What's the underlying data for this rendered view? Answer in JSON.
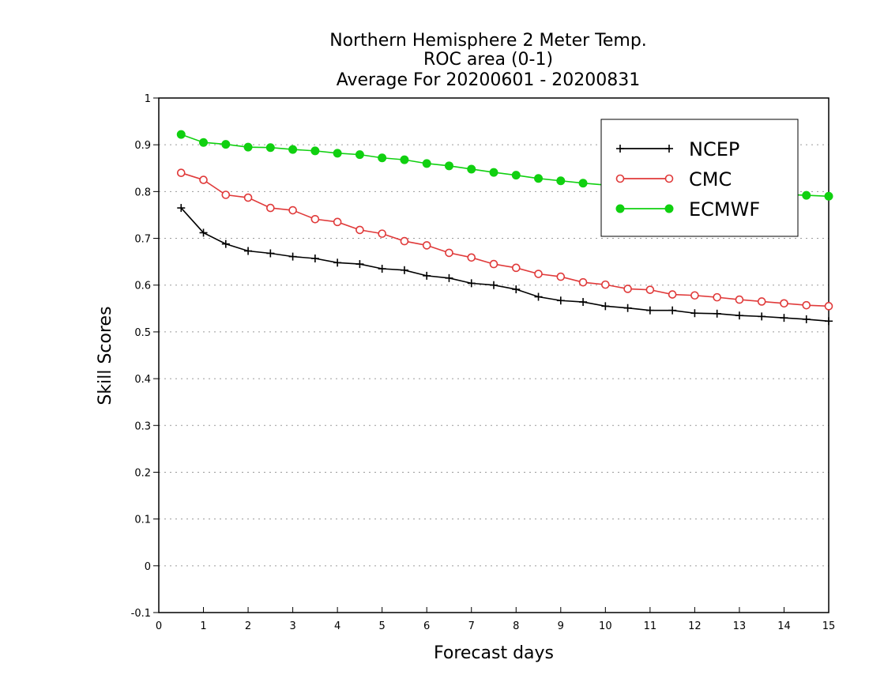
{
  "chart_data": {
    "type": "line",
    "title_lines": [
      "Northern Hemisphere 2 Meter Temp.",
      "ROC area (0-1)",
      "Average For 20200601 - 20200831"
    ],
    "xlabel": "Forecast days",
    "ylabel": "Skill Scores",
    "xlim": [
      0,
      15
    ],
    "ylim": [
      -0.1,
      1
    ],
    "xticks": [
      0,
      1,
      2,
      3,
      4,
      5,
      6,
      7,
      8,
      9,
      10,
      11,
      12,
      13,
      14,
      15
    ],
    "yticks": [
      -0.1,
      0,
      0.1,
      0.2,
      0.3,
      0.4,
      0.5,
      0.6,
      0.7,
      0.8,
      0.9,
      1
    ],
    "xtick_labels": [
      "0",
      "1",
      "2",
      "3",
      "4",
      "5",
      "6",
      "7",
      "8",
      "9",
      "10",
      "11",
      "12",
      "13",
      "14",
      "15"
    ],
    "ytick_labels": [
      "-0.1",
      "0",
      "0.1",
      "0.2",
      "0.3",
      "0.4",
      "0.5",
      "0.6",
      "0.7",
      "0.8",
      "0.9",
      "1"
    ],
    "grid": "horizontal dotted",
    "legend_position": "top-right",
    "x": [
      0.5,
      1,
      1.5,
      2,
      2.5,
      3,
      3.5,
      4,
      4.5,
      5,
      5.5,
      6,
      6.5,
      7,
      7.5,
      8,
      8.5,
      9,
      9.5,
      10,
      10.5,
      11,
      11.5,
      12,
      12.5,
      13,
      13.5,
      14,
      14.5,
      15
    ],
    "series": [
      {
        "name": "NCEP",
        "color": "#000000",
        "marker": "plus",
        "values": [
          0.765,
          0.712,
          0.688,
          0.673,
          0.668,
          0.661,
          0.657,
          0.648,
          0.645,
          0.635,
          0.632,
          0.62,
          0.615,
          0.604,
          0.6,
          0.591,
          0.575,
          0.567,
          0.564,
          0.555,
          0.551,
          0.546,
          0.546,
          0.54,
          0.539,
          0.535,
          0.533,
          0.53,
          0.527,
          0.523
        ]
      },
      {
        "name": "CMC",
        "color": "#e03a3a",
        "marker": "open-circle",
        "values": [
          0.84,
          0.825,
          0.793,
          0.787,
          0.765,
          0.76,
          0.741,
          0.735,
          0.718,
          0.71,
          0.694,
          0.685,
          0.669,
          0.659,
          0.645,
          0.637,
          0.624,
          0.618,
          0.606,
          0.601,
          0.592,
          0.59,
          0.58,
          0.578,
          0.574,
          0.569,
          0.565,
          0.561,
          0.557,
          0.555
        ]
      },
      {
        "name": "ECMWF",
        "color": "#10d010",
        "marker": "filled-circle",
        "values": [
          0.922,
          0.905,
          0.901,
          0.895,
          0.894,
          0.89,
          0.887,
          0.882,
          0.879,
          0.872,
          0.868,
          0.86,
          0.855,
          0.848,
          0.841,
          0.835,
          0.828,
          0.823,
          0.818,
          0.814,
          0.81,
          0.807,
          0.805,
          0.802,
          0.8,
          0.798,
          0.796,
          0.794,
          0.792,
          0.79
        ]
      }
    ]
  }
}
